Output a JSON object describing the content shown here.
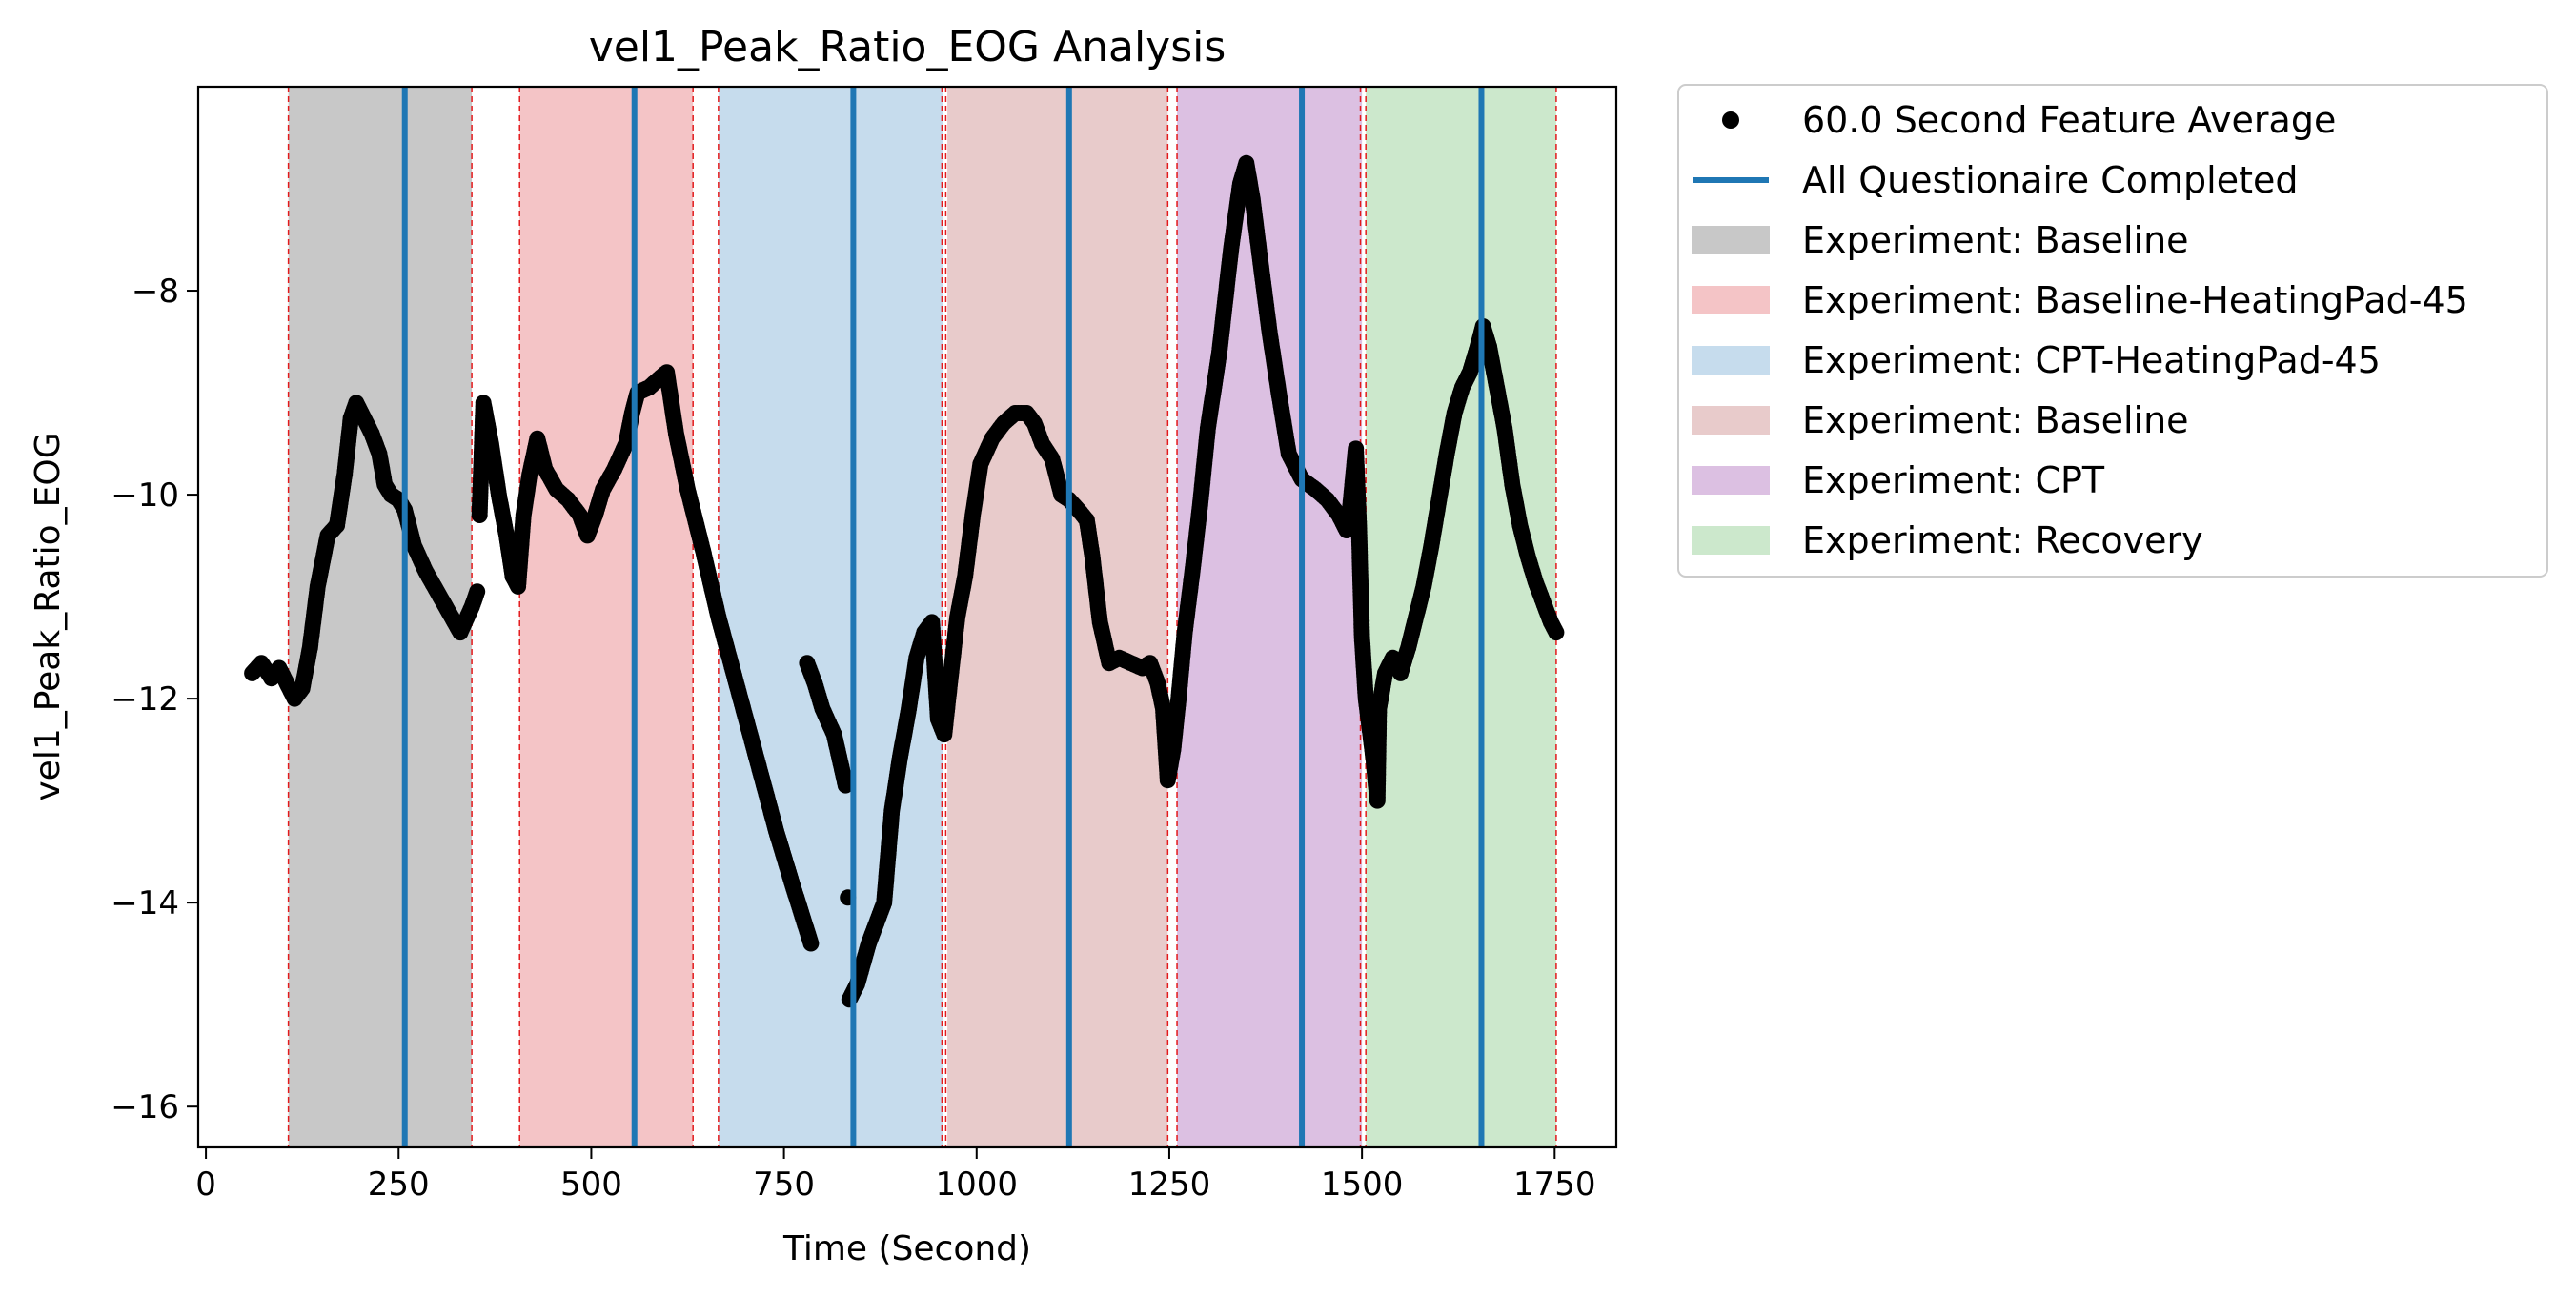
{
  "chart_data": {
    "type": "scatter",
    "title": "vel1_Peak_Ratio_EOG Analysis",
    "xlabel": "Time (Second)",
    "ylabel": "vel1_Peak_Ratio_EOG",
    "xlim": [
      -10,
      1830
    ],
    "ylim": [
      -16.4,
      -6.0
    ],
    "xticks": [
      0,
      250,
      500,
      750,
      1000,
      1250,
      1500,
      1750
    ],
    "yticks": [
      -16,
      -14,
      -12,
      -10,
      -8
    ],
    "xtick_labels": [
      "0",
      "250",
      "500",
      "750",
      "1000",
      "1250",
      "1500",
      "1750"
    ],
    "ytick_labels": [
      "−16",
      "−14",
      "−12",
      "−10",
      "−8"
    ],
    "grid": false,
    "legend_position": "outside-right-top",
    "legend": [
      {
        "label": "60.0 Second Feature Average",
        "kind": "marker",
        "color": "#000000"
      },
      {
        "label": "All Questionaire Completed",
        "kind": "line",
        "color": "#1f77b4"
      },
      {
        "label": "Experiment: Baseline",
        "kind": "patch",
        "color": "#c8c8c8"
      },
      {
        "label": "Experiment: Baseline-HeatingPad-45",
        "kind": "patch",
        "color": "#f4c4c6"
      },
      {
        "label": "Experiment: CPT-HeatingPad-45",
        "kind": "patch",
        "color": "#c6dced"
      },
      {
        "label": "Experiment: Baseline",
        "kind": "patch",
        "color": "#e8cbcb"
      },
      {
        "label": "Experiment: CPT",
        "kind": "patch",
        "color": "#dcc0e2"
      },
      {
        "label": "Experiment: Recovery",
        "kind": "patch",
        "color": "#cce8cc"
      }
    ],
    "phases": [
      {
        "label": "Experiment: Baseline",
        "start": 107,
        "end": 345,
        "color": "#c8c8c8"
      },
      {
        "label": "Experiment: Baseline-HeatingPad-45",
        "start": 407,
        "end": 632,
        "color": "#f4c4c6"
      },
      {
        "label": "Experiment: CPT-HeatingPad-45",
        "start": 665,
        "end": 957,
        "color": "#c6dced"
      },
      {
        "label": "Experiment: Baseline",
        "start": 962,
        "end": 1248,
        "color": "#e8cbcb"
      },
      {
        "label": "Experiment: CPT",
        "start": 1260,
        "end": 1500,
        "color": "#dcc0e2"
      },
      {
        "label": "Experiment: Recovery",
        "start": 1505,
        "end": 1752,
        "color": "#cce8cc"
      }
    ],
    "phase_boundaries": [
      107,
      345,
      407,
      632,
      665,
      955,
      960,
      1248,
      1260,
      1498,
      1505,
      1752
    ],
    "questionnaire_completed": [
      258,
      556,
      840,
      1120,
      1422,
      1655
    ],
    "series": [
      {
        "name": "60.0 Second Feature Average",
        "color": "#000000",
        "segments": [
          [
            [
              60,
              -11.75
            ],
            [
              72,
              -11.65
            ],
            [
              85,
              -11.8
            ],
            [
              95,
              -11.7
            ],
            [
              105,
              -11.85
            ],
            [
              115,
              -12.0
            ],
            [
              125,
              -11.9
            ],
            [
              135,
              -11.5
            ],
            [
              145,
              -10.9
            ],
            [
              158,
              -10.4
            ],
            [
              170,
              -10.3
            ],
            [
              180,
              -9.8
            ],
            [
              188,
              -9.25
            ],
            [
              195,
              -9.1
            ],
            [
              205,
              -9.25
            ],
            [
              215,
              -9.4
            ],
            [
              225,
              -9.6
            ],
            [
              232,
              -9.9
            ],
            [
              240,
              -10.0
            ],
            [
              250,
              -10.05
            ],
            [
              258,
              -10.15
            ],
            [
              270,
              -10.5
            ],
            [
              285,
              -10.75
            ],
            [
              300,
              -10.95
            ],
            [
              315,
              -11.15
            ],
            [
              330,
              -11.35
            ],
            [
              345,
              -11.1
            ],
            [
              352,
              -10.95
            ]
          ],
          [
            [
              355,
              -10.2
            ],
            [
              360,
              -9.1
            ],
            [
              370,
              -9.5
            ],
            [
              380,
              -10.0
            ],
            [
              390,
              -10.4
            ],
            [
              398,
              -10.8
            ],
            [
              405,
              -10.9
            ],
            [
              412,
              -10.2
            ],
            [
              420,
              -9.8
            ],
            [
              430,
              -9.45
            ],
            [
              440,
              -9.75
            ],
            [
              455,
              -9.95
            ],
            [
              470,
              -10.05
            ],
            [
              485,
              -10.2
            ],
            [
              495,
              -10.4
            ],
            [
              505,
              -10.2
            ],
            [
              515,
              -9.95
            ],
            [
              530,
              -9.75
            ],
            [
              545,
              -9.5
            ],
            [
              553,
              -9.2
            ],
            [
              560,
              -9.0
            ],
            [
              575,
              -8.95
            ],
            [
              590,
              -8.85
            ],
            [
              598,
              -8.8
            ],
            [
              610,
              -9.4
            ],
            [
              625,
              -9.95
            ],
            [
              645,
              -10.55
            ],
            [
              665,
              -11.2
            ],
            [
              690,
              -11.9
            ],
            [
              715,
              -12.6
            ],
            [
              740,
              -13.3
            ],
            [
              760,
              -13.8
            ],
            [
              785,
              -14.4
            ]
          ],
          [
            [
              780,
              -11.65
            ],
            [
              790,
              -11.85
            ],
            [
              800,
              -12.1
            ],
            [
              815,
              -12.35
            ],
            [
              830,
              -12.85
            ]
          ],
          [
            [
              833,
              -13.95
            ]
          ],
          [
            [
              835,
              -14.95
            ],
            [
              845,
              -14.8
            ],
            [
              860,
              -14.4
            ],
            [
              880,
              -14.0
            ],
            [
              890,
              -13.1
            ],
            [
              900,
              -12.6
            ],
            [
              912,
              -12.1
            ],
            [
              922,
              -11.6
            ],
            [
              932,
              -11.35
            ],
            [
              942,
              -11.25
            ],
            [
              950,
              -12.2
            ],
            [
              958,
              -12.35
            ],
            [
              966,
              -11.8
            ],
            [
              975,
              -11.2
            ],
            [
              985,
              -10.8
            ],
            [
              995,
              -10.2
            ],
            [
              1005,
              -9.7
            ],
            [
              1020,
              -9.45
            ],
            [
              1035,
              -9.3
            ],
            [
              1050,
              -9.2
            ],
            [
              1065,
              -9.2
            ],
            [
              1075,
              -9.3
            ],
            [
              1085,
              -9.5
            ],
            [
              1098,
              -9.65
            ],
            [
              1110,
              -10.0
            ],
            [
              1120,
              -10.05
            ],
            [
              1132,
              -10.15
            ],
            [
              1143,
              -10.25
            ],
            [
              1150,
              -10.6
            ],
            [
              1160,
              -11.25
            ],
            [
              1172,
              -11.65
            ],
            [
              1185,
              -11.6
            ],
            [
              1200,
              -11.65
            ],
            [
              1215,
              -11.7
            ],
            [
              1225,
              -11.65
            ],
            [
              1235,
              -11.85
            ],
            [
              1242,
              -12.1
            ],
            [
              1248,
              -12.8
            ],
            [
              1255,
              -12.5
            ],
            [
              1262,
              -12.0
            ],
            [
              1270,
              -11.35
            ],
            [
              1280,
              -10.75
            ],
            [
              1290,
              -10.1
            ],
            [
              1300,
              -9.35
            ],
            [
              1315,
              -8.6
            ],
            [
              1330,
              -7.6
            ],
            [
              1342,
              -6.95
            ],
            [
              1350,
              -6.75
            ],
            [
              1358,
              -7.1
            ],
            [
              1368,
              -7.7
            ],
            [
              1380,
              -8.4
            ],
            [
              1392,
              -9.0
            ],
            [
              1405,
              -9.6
            ],
            [
              1422,
              -9.85
            ],
            [
              1440,
              -9.95
            ],
            [
              1455,
              -10.05
            ],
            [
              1470,
              -10.2
            ],
            [
              1480,
              -10.35
            ],
            [
              1485,
              -10.1
            ],
            [
              1492,
              -9.55
            ],
            [
              1496,
              -10.3
            ],
            [
              1500,
              -11.4
            ],
            [
              1505,
              -12.0
            ],
            [
              1515,
              -12.6
            ],
            [
              1520,
              -13.0
            ],
            [
              1522,
              -12.1
            ],
            [
              1530,
              -11.75
            ],
            [
              1540,
              -11.6
            ],
            [
              1550,
              -11.75
            ],
            [
              1560,
              -11.5
            ],
            [
              1570,
              -11.2
            ],
            [
              1580,
              -10.9
            ],
            [
              1590,
              -10.5
            ],
            [
              1600,
              -10.05
            ],
            [
              1610,
              -9.6
            ],
            [
              1620,
              -9.2
            ],
            [
              1630,
              -8.95
            ],
            [
              1640,
              -8.8
            ],
            [
              1650,
              -8.55
            ],
            [
              1657,
              -8.35
            ],
            [
              1665,
              -8.55
            ],
            [
              1675,
              -8.95
            ],
            [
              1685,
              -9.35
            ],
            [
              1695,
              -9.9
            ],
            [
              1705,
              -10.3
            ],
            [
              1715,
              -10.6
            ],
            [
              1725,
              -10.85
            ],
            [
              1735,
              -11.05
            ],
            [
              1745,
              -11.25
            ],
            [
              1752,
              -11.35
            ]
          ]
        ]
      }
    ]
  }
}
